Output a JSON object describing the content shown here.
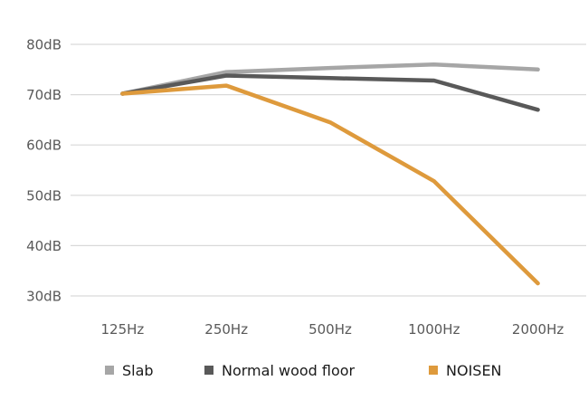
{
  "chart_data": {
    "type": "line",
    "title": "",
    "xlabel": "",
    "ylabel": "",
    "categories": [
      "125Hz",
      "250Hz",
      "500Hz",
      "1000Hz",
      "2000Hz"
    ],
    "y_tick_labels": [
      "30dB",
      "40dB",
      "50dB",
      "60dB",
      "70dB",
      "80dB"
    ],
    "y_ticks": [
      30,
      40,
      50,
      60,
      70,
      80
    ],
    "ylim": [
      30,
      80
    ],
    "grid": "horizontal",
    "legend_position": "bottom",
    "series": [
      {
        "name": "Slab",
        "color": "#a6a6a6",
        "values": [
          70.2,
          74.5,
          75.3,
          76.0,
          75.0
        ]
      },
      {
        "name": "Normal wood floor",
        "color": "#595959",
        "values": [
          70.2,
          73.8,
          73.3,
          72.8,
          67.0
        ]
      },
      {
        "name": "NOISEN",
        "color": "#de9a3c",
        "values": [
          70.2,
          71.8,
          64.5,
          52.8,
          32.5
        ]
      }
    ]
  }
}
